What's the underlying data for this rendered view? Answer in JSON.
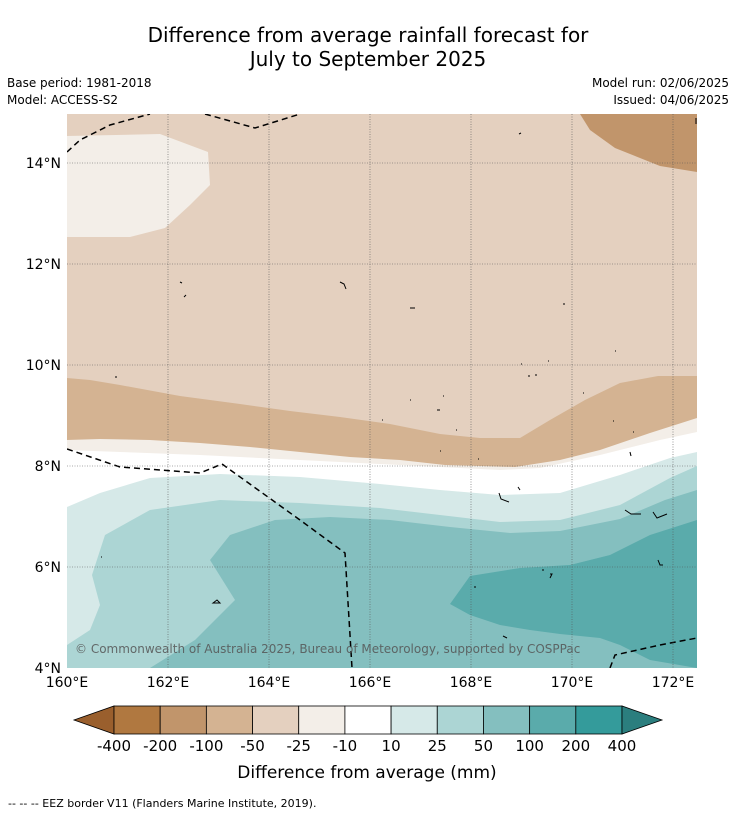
{
  "title_line1": "Difference from average rainfall forecast for",
  "title_line2": "July to September 2025",
  "base_period": "Base period: 1981-2018",
  "model": "Model: ACCESS-S2",
  "model_run": "Model run: 02/06/2025",
  "issued": "Issued: 04/06/2025",
  "copyright": "© Commonwealth of Australia 2025, Bureau of Meteorology, supported by COSPPac",
  "lat_labels": [
    "14°N",
    "12°N",
    "10°N",
    "8°N",
    "6°N",
    "4°N"
  ],
  "lon_labels": [
    "160°E",
    "162°E",
    "164°E",
    "166°E",
    "168°E",
    "170°E",
    "172°E"
  ],
  "colorbar": {
    "title": "Difference from average (mm)",
    "tick_labels": [
      "-400",
      "-200",
      "-100",
      "-50",
      "-25",
      "-10",
      "10",
      "25",
      "50",
      "100",
      "200",
      "400"
    ],
    "colors": [
      "#9a5f2d",
      "#b07840",
      "#c1956b",
      "#d4b392",
      "#e4d0bf",
      "#f3eee8",
      "#ffffff",
      "#d6e9e8",
      "#acd5d4",
      "#84bfbf",
      "#5aabab",
      "#349b9b",
      "#2b7e7e"
    ]
  },
  "footer": "--  --  -- EEZ border V11 (Flanders Marine Institute, 2019)."
}
